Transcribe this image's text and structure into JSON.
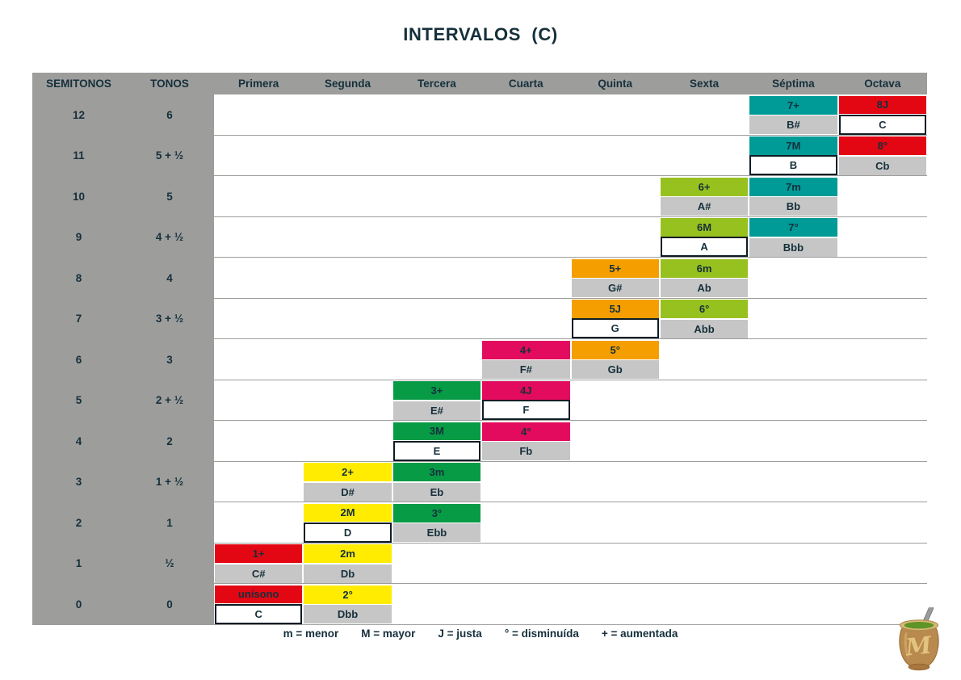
{
  "title": "INTERVALOS  (C)",
  "table": {
    "headers": [
      "SEMITONOS",
      "TONOS",
      "Primera",
      "Segunda",
      "Tercera",
      "Cuarta",
      "Quinta",
      "Sexta",
      "Séptima",
      "Octava"
    ],
    "rows": [
      {
        "semitones": "12",
        "tones": "6",
        "cells": {
          "Séptima": {
            "interval": "7+",
            "note": "B#",
            "natural": false
          },
          "Octava": {
            "interval": "8J",
            "note": "C",
            "natural": true
          }
        }
      },
      {
        "semitones": "11",
        "tones": "5 + ½",
        "cells": {
          "Séptima": {
            "interval": "7M",
            "note": "B",
            "natural": true
          },
          "Octava": {
            "interval": "8°",
            "note": "Cb",
            "natural": false
          }
        }
      },
      {
        "semitones": "10",
        "tones": "5",
        "cells": {
          "Sexta": {
            "interval": "6+",
            "note": "A#",
            "natural": false
          },
          "Séptima": {
            "interval": "7m",
            "note": "Bb",
            "natural": false
          }
        }
      },
      {
        "semitones": "9",
        "tones": "4 + ½",
        "cells": {
          "Sexta": {
            "interval": "6M",
            "note": "A",
            "natural": true
          },
          "Séptima": {
            "interval": "7°",
            "note": "Bbb",
            "natural": false
          }
        }
      },
      {
        "semitones": "8",
        "tones": "4",
        "cells": {
          "Quinta": {
            "interval": "5+",
            "note": "G#",
            "natural": false
          },
          "Sexta": {
            "interval": "6m",
            "note": "Ab",
            "natural": false
          }
        }
      },
      {
        "semitones": "7",
        "tones": "3 + ½",
        "cells": {
          "Quinta": {
            "interval": "5J",
            "note": "G",
            "natural": true
          },
          "Sexta": {
            "interval": "6°",
            "note": "Abb",
            "natural": false
          }
        }
      },
      {
        "semitones": "6",
        "tones": "3",
        "cells": {
          "Cuarta": {
            "interval": "4+",
            "note": "F#",
            "natural": false
          },
          "Quinta": {
            "interval": "5°",
            "note": "Gb",
            "natural": false
          }
        }
      },
      {
        "semitones": "5",
        "tones": "2 + ½",
        "cells": {
          "Tercera": {
            "interval": "3+",
            "note": "E#",
            "natural": false
          },
          "Cuarta": {
            "interval": "4J",
            "note": "F",
            "natural": true
          }
        }
      },
      {
        "semitones": "4",
        "tones": "2",
        "cells": {
          "Tercera": {
            "interval": "3M",
            "note": "E",
            "natural": true
          },
          "Cuarta": {
            "interval": "4°",
            "note": "Fb",
            "natural": false
          }
        }
      },
      {
        "semitones": "3",
        "tones": "1 + ½",
        "cells": {
          "Segunda": {
            "interval": "2+",
            "note": "D#",
            "natural": false
          },
          "Tercera": {
            "interval": "3m",
            "note": "Eb",
            "natural": false
          }
        }
      },
      {
        "semitones": "2",
        "tones": "1",
        "cells": {
          "Segunda": {
            "interval": "2M",
            "note": "D",
            "natural": true
          },
          "Tercera": {
            "interval": "3°",
            "note": "Ebb",
            "natural": false
          }
        }
      },
      {
        "semitones": "1",
        "tones": "½",
        "cells": {
          "Primera": {
            "interval": "1+",
            "note": "C#",
            "natural": false
          },
          "Segunda": {
            "interval": "2m",
            "note": "Db",
            "natural": false
          }
        }
      },
      {
        "semitones": "0",
        "tones": "0",
        "cells": {
          "Primera": {
            "interval": "unísono",
            "note": "C",
            "natural": true
          },
          "Segunda": {
            "interval": "2°",
            "note": "Dbb",
            "natural": false
          }
        }
      }
    ]
  },
  "legend": {
    "items": [
      "m = menor",
      "M = mayor",
      "J = justa",
      "° = disminuída",
      "+ = aumentada"
    ]
  },
  "logo": {
    "monogram": "M"
  },
  "colors": {
    "header_gray": "#9d9d9c",
    "note_gray": "#c6c6c6",
    "text_dark": "#15303b",
    "natural_border": "#0e1c24",
    "row_line": "#9d9d9c",
    "column_colors": {
      "Primera": "#e30613",
      "Segunda": "#ffec00",
      "Tercera": "#089b46",
      "Cuarta": "#e30b5d",
      "Quinta": "#f59e00",
      "Sexta": "#97c11f",
      "Séptima": "#009a97",
      "Octava": "#e30613"
    }
  }
}
